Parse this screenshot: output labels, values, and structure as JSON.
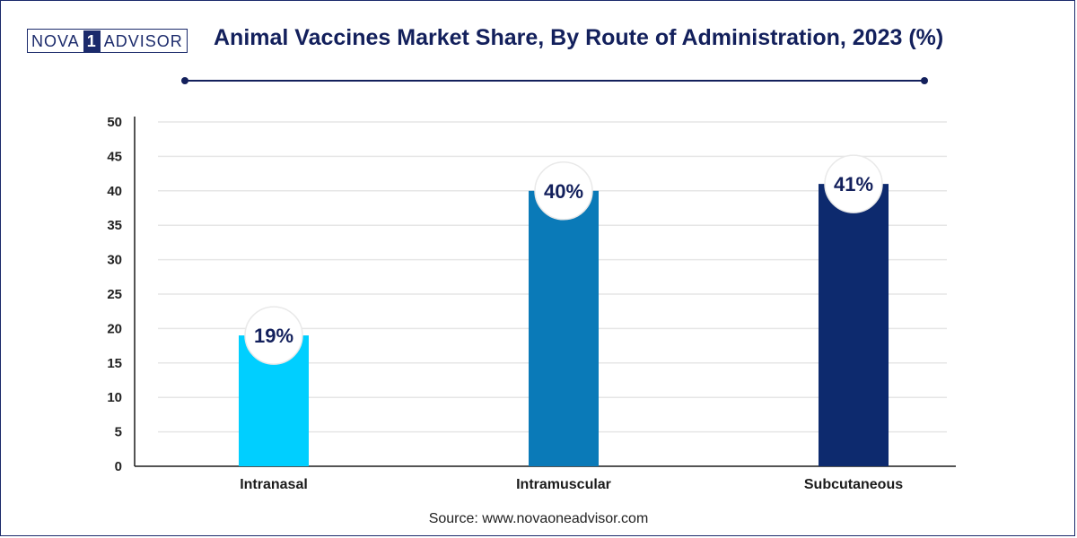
{
  "logo": {
    "left": "NOVA",
    "middle": "1",
    "right": "ADVISOR"
  },
  "title": "Animal Vaccines Market Share, By Route of Administration, 2023 (%)",
  "source": "Source: www.novaoneadvisor.com",
  "colors": {
    "title": "#13205c",
    "intranasal": "#00cfff",
    "intramuscular": "#0a7ab8",
    "subcutaneous": "#0d2a6e",
    "grid": "#e6e6e6",
    "axis": "#1b1b1b"
  },
  "chart_data": {
    "type": "bar",
    "categories": [
      "Intranasal",
      "Intramuscular",
      "Subcutaneous"
    ],
    "values": [
      19,
      40,
      41
    ],
    "value_labels": [
      "19%",
      "40%",
      "41%"
    ],
    "bar_colors": [
      "#00cfff",
      "#0a7ab8",
      "#0d2a6e"
    ],
    "ylim": [
      0,
      50
    ],
    "yticks": [
      0,
      5,
      10,
      15,
      20,
      25,
      30,
      35,
      40,
      45,
      50
    ],
    "xlabel": "",
    "ylabel": "",
    "grid": true,
    "legend": "none"
  }
}
